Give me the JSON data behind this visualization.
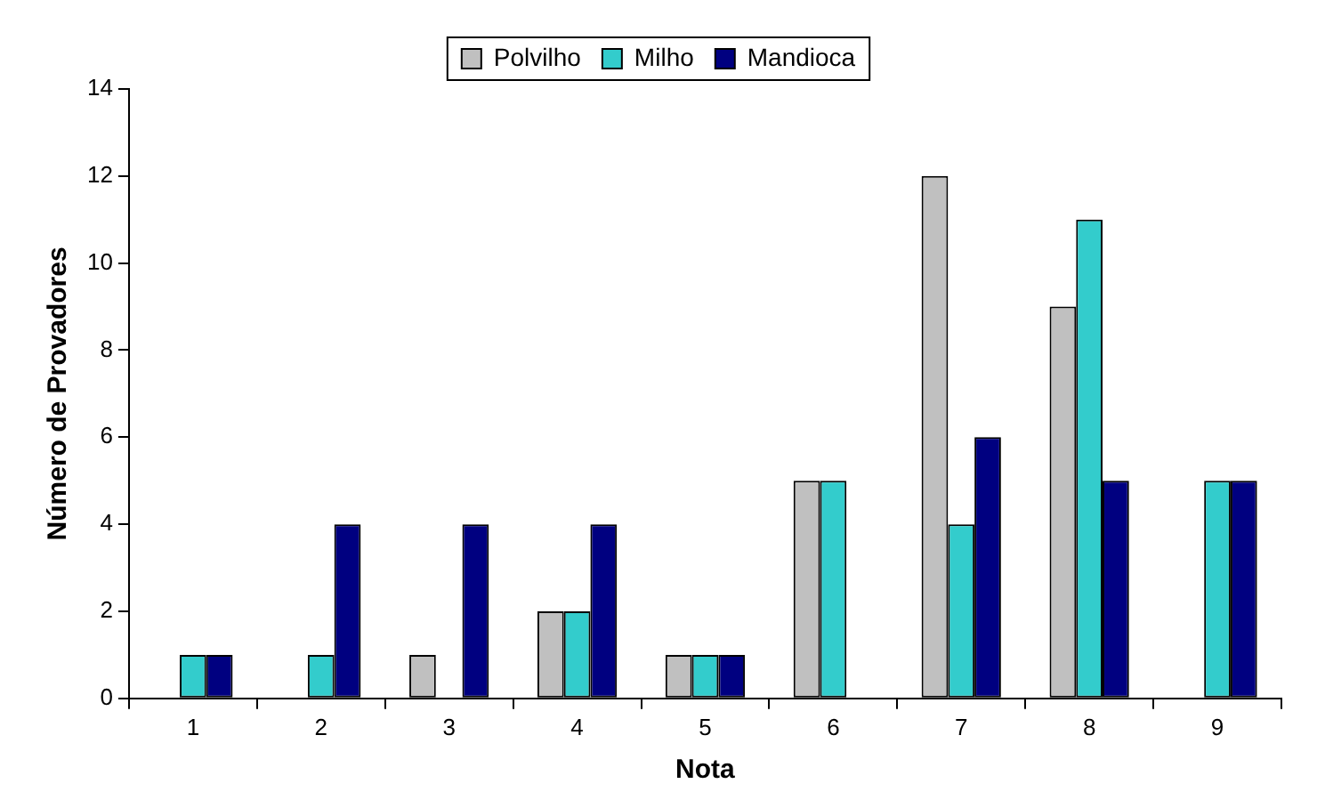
{
  "chart_data": {
    "type": "bar",
    "xlabel": "Nota",
    "ylabel": "Número de Provadores",
    "categories": [
      "1",
      "2",
      "3",
      "4",
      "5",
      "6",
      "7",
      "8",
      "9"
    ],
    "series": [
      {
        "name": "Polvilho",
        "color": "#c0c0c0",
        "values": [
          0,
          0,
          1,
          2,
          1,
          5,
          12,
          9,
          0
        ]
      },
      {
        "name": "Milho",
        "color": "#33cccc",
        "values": [
          1,
          1,
          0,
          2,
          1,
          5,
          4,
          11,
          5
        ]
      },
      {
        "name": "Mandioca",
        "color": "#000080",
        "values": [
          1,
          4,
          4,
          4,
          1,
          0,
          6,
          5,
          5
        ]
      }
    ],
    "ylim": [
      0,
      14
    ],
    "yticks": [
      0,
      2,
      4,
      6,
      8,
      10,
      12,
      14
    ],
    "grid": false,
    "legend": "top"
  }
}
